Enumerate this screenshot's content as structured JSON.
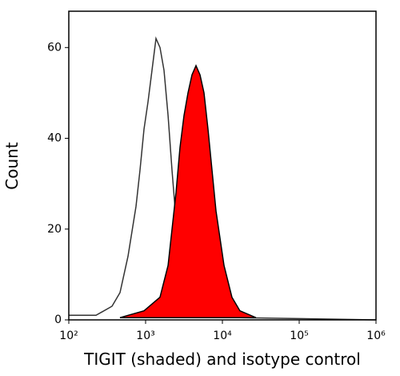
{
  "chart_data": {
    "type": "histogram-overlay",
    "xlabel": "TIGIT (shaded) and isotype control",
    "ylabel": "Count",
    "xscale": "log",
    "xlim": [
      100,
      1000000
    ],
    "xticks": [
      {
        "value": 100,
        "label": "10²"
      },
      {
        "value": 1000,
        "label": "10³"
      },
      {
        "value": 10000,
        "label": "10⁴"
      },
      {
        "value": 100000,
        "label": "10⁵"
      },
      {
        "value": 1000000,
        "label": "10⁶"
      }
    ],
    "ylim": [
      0,
      68
    ],
    "yticks": [
      0,
      20,
      40,
      60
    ],
    "series": [
      {
        "color": "#333333",
        "filled": false,
        "x": [
          100,
          226,
          365,
          464,
          590,
          750,
          845,
          953,
          1075,
          1211,
          1365,
          1540,
          1738,
          1960,
          2208,
          2490,
          2806,
          3162,
          4018,
          6494,
          16900,
          1000000
        ],
        "values": [
          1,
          1,
          3,
          6,
          14,
          25,
          33,
          42,
          48,
          55,
          62,
          60,
          55,
          45,
          33,
          22,
          12,
          7,
          3,
          2,
          0.5,
          0
        ]
      },
      {
        "color": "#ff0000",
        "filled": true,
        "x": [
          464,
          953,
          1540,
          1960,
          2490,
          2806,
          3162,
          3565,
          4018,
          4530,
          5105,
          5754,
          6494,
          7320,
          8250,
          10480,
          13300,
          16900,
          27300
        ],
        "values": [
          0.5,
          2,
          5,
          12,
          28,
          38,
          45,
          50,
          54,
          56,
          54,
          50,
          42,
          33,
          24,
          12,
          5,
          2,
          0.5
        ]
      }
    ]
  }
}
